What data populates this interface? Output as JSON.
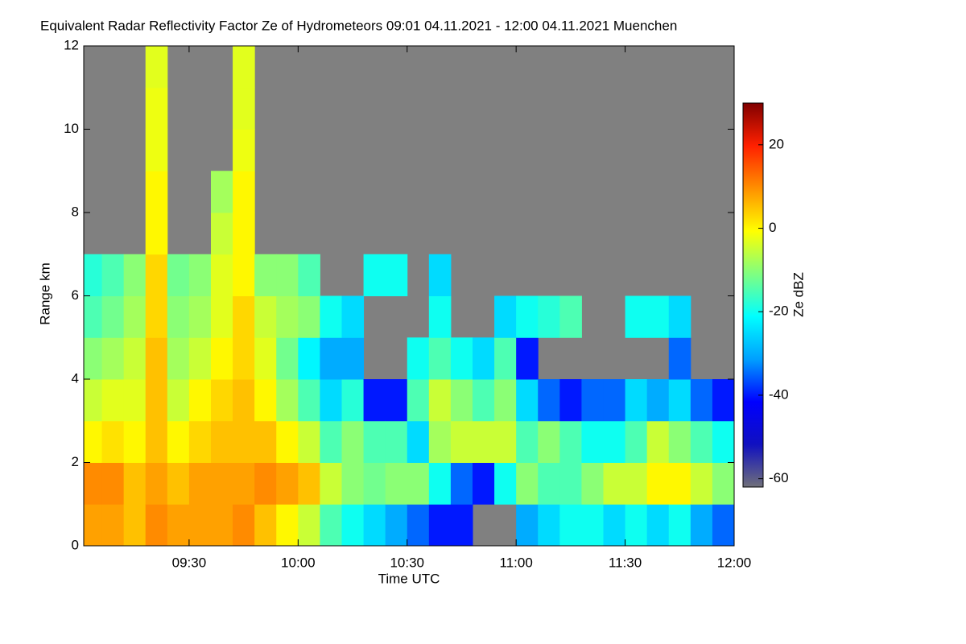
{
  "chart_data": {
    "type": "heatmap",
    "title": "Equivalent Radar Reflectivity Factor Ze of Hydrometeors   09:01 04.11.2021 - 12:00 04.11.2021 Muenchen",
    "x_label": "Time UTC",
    "y_label": "Range km",
    "colorbar_label": "Ze dBZ",
    "xlim": [
      "09:01",
      "12:00"
    ],
    "xticks": [
      "09:30",
      "10:00",
      "10:30",
      "11:00",
      "11:30",
      "12:00"
    ],
    "ylim": [
      0,
      12
    ],
    "yticks": [
      0,
      2,
      4,
      6,
      8,
      10,
      12
    ],
    "zlim": [
      -62,
      30
    ],
    "zticks": [
      -60,
      -40,
      -20,
      0,
      20
    ],
    "colors": [
      "#70707a",
      "#1010c0",
      "#0000ff",
      "#00a0ff",
      "#00ffff",
      "#80ff80",
      "#ffff00",
      "#ff9000",
      "#ff2000",
      "#800000"
    ],
    "no_data_color": "#808080",
    "x": [
      "09:03",
      "09:09",
      "09:15",
      "09:21",
      "09:27",
      "09:33",
      "09:39",
      "09:45",
      "09:51",
      "09:57",
      "10:03",
      "10:09",
      "10:15",
      "10:21",
      "10:27",
      "10:33",
      "10:39",
      "10:45",
      "10:51",
      "10:57",
      "11:03",
      "11:09",
      "11:15",
      "11:21",
      "11:27",
      "11:33",
      "11:39",
      "11:45",
      "11:51",
      "11:57"
    ],
    "y": [
      0.5,
      1.5,
      2.5,
      3.5,
      4.5,
      5.5,
      6.5,
      7.5,
      8.5,
      9.5,
      10.5,
      11.5
    ],
    "z": [
      [
        8,
        10,
        0,
        -5,
        -10,
        -15,
        -18,
        null,
        null,
        null,
        null,
        null
      ],
      [
        8,
        10,
        2,
        -3,
        -8,
        -12,
        -15,
        null,
        null,
        null,
        null,
        null
      ],
      [
        5,
        5,
        0,
        -3,
        -5,
        -8,
        -10,
        null,
        null,
        null,
        null,
        null
      ],
      [
        10,
        8,
        5,
        5,
        5,
        3,
        3,
        0,
        0,
        -2,
        -2,
        -3
      ],
      [
        8,
        5,
        0,
        -5,
        -8,
        -10,
        -12,
        null,
        null,
        null,
        null,
        null
      ],
      [
        8,
        8,
        3,
        0,
        -5,
        -8,
        -10,
        null,
        null,
        null,
        null,
        null
      ],
      [
        8,
        8,
        5,
        3,
        0,
        -3,
        -3,
        -5,
        -8,
        null,
        null,
        null
      ],
      [
        10,
        8,
        5,
        5,
        3,
        3,
        0,
        0,
        0,
        -2,
        -3,
        -3
      ],
      [
        5,
        10,
        5,
        0,
        -3,
        -5,
        -10,
        null,
        null,
        null,
        null,
        null
      ],
      [
        0,
        8,
        0,
        -8,
        -12,
        -8,
        -10,
        null,
        null,
        null,
        null,
        null
      ],
      [
        -5,
        5,
        -5,
        -15,
        -22,
        -10,
        -15,
        null,
        null,
        null,
        null,
        null
      ],
      [
        -15,
        -5,
        -15,
        -25,
        -30,
        -20,
        null,
        null,
        null,
        null,
        null,
        null
      ],
      [
        -20,
        -10,
        -10,
        -18,
        -30,
        -25,
        null,
        null,
        null,
        null,
        null,
        null
      ],
      [
        -25,
        -12,
        -15,
        -40,
        null,
        null,
        -20,
        null,
        null,
        null,
        null,
        null
      ],
      [
        -30,
        -10,
        -15,
        -40,
        null,
        null,
        -20,
        null,
        null,
        null,
        null,
        null
      ],
      [
        -35,
        -10,
        -25,
        -15,
        -20,
        null,
        null,
        null,
        null,
        null,
        null,
        null
      ],
      [
        -40,
        -20,
        -8,
        -5,
        -15,
        -20,
        -25,
        null,
        null,
        null,
        null,
        null
      ],
      [
        -40,
        -35,
        -5,
        -10,
        -20,
        null,
        null,
        null,
        null,
        null,
        null,
        null
      ],
      [
        null,
        -40,
        -5,
        -15,
        -25,
        null,
        null,
        null,
        null,
        null,
        null,
        null
      ],
      [
        null,
        -20,
        -5,
        -10,
        -15,
        -25,
        null,
        null,
        null,
        null,
        null,
        null
      ],
      [
        -30,
        -10,
        -15,
        -25,
        -40,
        -20,
        null,
        null,
        null,
        null,
        null,
        null
      ],
      [
        -25,
        -15,
        -10,
        -35,
        null,
        -18,
        null,
        null,
        null,
        null,
        null,
        null
      ],
      [
        -20,
        -15,
        -15,
        -40,
        null,
        -15,
        null,
        null,
        null,
        null,
        null,
        null
      ],
      [
        -20,
        -10,
        -20,
        -35,
        null,
        null,
        null,
        null,
        null,
        null,
        null,
        null
      ],
      [
        -25,
        -5,
        -20,
        -35,
        null,
        null,
        null,
        null,
        null,
        null,
        null,
        null
      ],
      [
        -20,
        -5,
        -15,
        -25,
        null,
        -20,
        null,
        null,
        null,
        null,
        null,
        null
      ],
      [
        -25,
        0,
        -5,
        -30,
        null,
        -20,
        null,
        null,
        null,
        null,
        null,
        null
      ],
      [
        -20,
        0,
        -10,
        -25,
        -35,
        -25,
        null,
        null,
        null,
        null,
        null,
        null
      ],
      [
        -30,
        -5,
        -15,
        -35,
        null,
        null,
        null,
        null,
        null,
        null,
        null,
        null
      ],
      [
        -35,
        -10,
        -20,
        -40,
        null,
        null,
        null,
        null,
        null,
        null,
        null,
        null
      ]
    ]
  }
}
